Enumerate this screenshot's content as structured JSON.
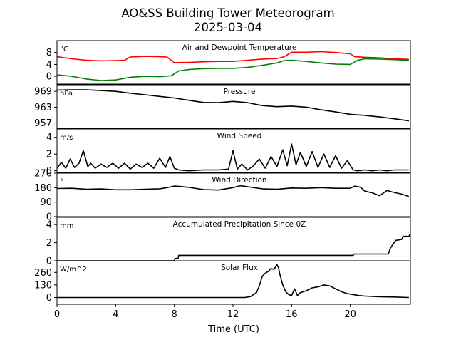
{
  "figure": {
    "title_line1": "AO&SS Building Tower Meteorogram",
    "title_line2": "2025-03-04",
    "xlabel": "Time (UTC)",
    "x_ticks": [
      0,
      4,
      8,
      12,
      16,
      20
    ],
    "xlim": [
      0,
      24.1
    ]
  },
  "colors": {
    "temperature": "#ff0000",
    "dewpoint": "#008000",
    "default": "#000000"
  },
  "chart_data": [
    {
      "type": "line",
      "title": "Air and Dewpoint Temperature",
      "unit": "°C",
      "ylim": [
        -2.6,
        12.0
      ],
      "y_ticks": [
        0,
        4,
        8
      ],
      "series": [
        {
          "color": "temperature",
          "x": [
            0,
            1,
            2,
            3,
            4,
            4.6,
            5,
            6,
            7,
            7.5,
            8,
            9,
            10,
            11,
            12,
            13,
            14,
            15,
            15.5,
            16,
            17,
            18,
            19,
            20,
            20.3,
            21,
            22,
            23,
            24
          ],
          "y": [
            6.6,
            5.9,
            5.4,
            5.2,
            5.3,
            5.4,
            6.5,
            6.7,
            6.6,
            6.5,
            4.6,
            4.7,
            4.9,
            5.0,
            5.0,
            5.4,
            5.8,
            6.0,
            6.6,
            8.1,
            8.1,
            8.3,
            8.0,
            7.6,
            6.6,
            6.4,
            6.2,
            5.9,
            5.7
          ]
        },
        {
          "color": "dewpoint",
          "x": [
            0,
            1,
            2,
            3,
            4,
            5,
            6,
            7,
            7.8,
            8.3,
            9,
            10,
            11,
            12,
            13,
            14,
            15,
            15.5,
            16,
            17,
            18,
            19,
            20,
            20.5,
            21,
            22,
            23,
            24
          ],
          "y": [
            0.5,
            0.0,
            -0.9,
            -1.4,
            -1.2,
            -0.3,
            0.0,
            -0.1,
            0.2,
            1.8,
            2.3,
            2.6,
            2.7,
            2.7,
            3.0,
            3.7,
            4.5,
            5.3,
            5.4,
            5.0,
            4.5,
            4.1,
            4.0,
            5.4,
            5.9,
            5.8,
            5.6,
            5.4
          ]
        }
      ]
    },
    {
      "type": "line",
      "title": "Pressure",
      "unit": "hPa",
      "ylim": [
        955.0,
        971.5
      ],
      "y_ticks": [
        957,
        963,
        969
      ],
      "series": [
        {
          "color": "default",
          "x": [
            0,
            1,
            2,
            3,
            4,
            5,
            6,
            7,
            8,
            9,
            10,
            11,
            12,
            13,
            14,
            15,
            16,
            17,
            18,
            19,
            20,
            21,
            22,
            23,
            24
          ],
          "y": [
            969.5,
            969.6,
            969.6,
            969.3,
            969.0,
            968.3,
            967.7,
            967.1,
            966.5,
            965.6,
            964.8,
            964.7,
            965.2,
            964.7,
            963.6,
            963.2,
            963.4,
            963.0,
            962.0,
            961.2,
            960.3,
            959.9,
            959.3,
            958.6,
            957.8
          ]
        }
      ]
    },
    {
      "type": "line",
      "title": "Wind Speed",
      "unit": "m/s",
      "ylim": [
        -0.2,
        5.0
      ],
      "y_ticks": [
        0,
        2,
        4
      ],
      "series": [
        {
          "color": "default",
          "x": [
            0,
            0.3,
            0.6,
            0.9,
            1.2,
            1.5,
            1.8,
            2.1,
            2.3,
            2.6,
            3.0,
            3.4,
            3.8,
            4.2,
            4.6,
            5.0,
            5.4,
            5.8,
            6.2,
            6.6,
            7.0,
            7.4,
            7.7,
            8.0,
            8.3,
            9.0,
            10.0,
            11.0,
            11.7,
            12.0,
            12.3,
            12.6,
            13.0,
            13.4,
            13.8,
            14.2,
            14.6,
            15.0,
            15.4,
            15.7,
            16.0,
            16.3,
            16.6,
            17.0,
            17.4,
            17.8,
            18.2,
            18.6,
            19.0,
            19.4,
            19.8,
            20.2,
            20.5,
            21.0,
            21.5,
            22.0,
            22.5,
            23.0,
            24.0
          ],
          "y": [
            0.3,
            1.0,
            0.3,
            1.4,
            0.4,
            0.9,
            2.4,
            0.5,
            0.9,
            0.3,
            0.8,
            0.4,
            0.9,
            0.3,
            0.9,
            0.2,
            0.8,
            0.4,
            0.9,
            0.3,
            1.5,
            0.4,
            1.7,
            0.3,
            0.1,
            0.0,
            0.1,
            0.1,
            0.2,
            2.4,
            0.2,
            0.8,
            0.1,
            0.6,
            1.4,
            0.3,
            1.7,
            0.5,
            2.5,
            0.6,
            3.2,
            0.7,
            2.2,
            0.5,
            2.3,
            0.4,
            2.0,
            0.4,
            1.8,
            0.3,
            1.2,
            0.1,
            0.0,
            0.1,
            0.0,
            0.1,
            0.0,
            0.1,
            0.1
          ]
        }
      ]
    },
    {
      "type": "line",
      "title": "Wind Direction",
      "unit": "°",
      "ylim": [
        0,
        270
      ],
      "y_ticks": [
        0,
        90,
        180,
        270
      ],
      "series": [
        {
          "color": "default",
          "x": [
            0,
            1,
            2,
            3,
            4,
            5,
            6,
            7,
            7.5,
            8,
            8.5,
            9,
            10,
            11,
            12,
            12.5,
            13,
            14,
            15,
            16,
            17,
            18,
            19,
            20,
            20.3,
            20.7,
            21,
            21.5,
            22,
            22.5,
            23,
            23.5,
            24
          ],
          "y": [
            175,
            176,
            170,
            172,
            167,
            167,
            170,
            173,
            180,
            190,
            187,
            182,
            168,
            165,
            180,
            192,
            186,
            173,
            170,
            178,
            176,
            180,
            176,
            176,
            190,
            183,
            158,
            148,
            130,
            162,
            150,
            140,
            125
          ]
        }
      ]
    },
    {
      "type": "line",
      "title": "Accumulated Precipitation Since 0Z",
      "unit": "mm",
      "ylim": [
        0,
        4.8
      ],
      "y_ticks": [
        0,
        2,
        4
      ],
      "series": [
        {
          "color": "default",
          "x": [
            0,
            8.0,
            8.05,
            8.25,
            8.3,
            20.2,
            20.25,
            22.6,
            22.7,
            22.9,
            23.1,
            23.5,
            23.6,
            24.0,
            24.1
          ],
          "y": [
            0,
            0,
            0.25,
            0.25,
            0.6,
            0.6,
            0.75,
            0.75,
            1.3,
            1.8,
            2.25,
            2.35,
            2.7,
            2.7,
            3.0
          ]
        }
      ]
    },
    {
      "type": "line",
      "title": "Solar Flux",
      "unit": "W/m^2",
      "ylim": [
        -70,
        380
      ],
      "y_ticks": [
        0,
        130,
        260
      ],
      "series": [
        {
          "color": "default",
          "x": [
            0,
            12.8,
            13.2,
            13.6,
            13.8,
            14.0,
            14.2,
            14.4,
            14.6,
            14.8,
            15.0,
            15.1,
            15.2,
            15.4,
            15.6,
            15.8,
            16.0,
            16.2,
            16.4,
            16.6,
            17.0,
            17.4,
            17.8,
            18.2,
            18.6,
            19.0,
            19.4,
            19.8,
            20.2,
            20.6,
            21.0,
            22.0,
            23.0,
            24.0
          ],
          "y": [
            0,
            0,
            10,
            50,
            120,
            220,
            250,
            270,
            300,
            290,
            340,
            310,
            240,
            130,
            60,
            30,
            20,
            90,
            20,
            50,
            70,
            100,
            110,
            130,
            120,
            90,
            60,
            40,
            30,
            20,
            15,
            8,
            5,
            0
          ]
        }
      ]
    }
  ]
}
